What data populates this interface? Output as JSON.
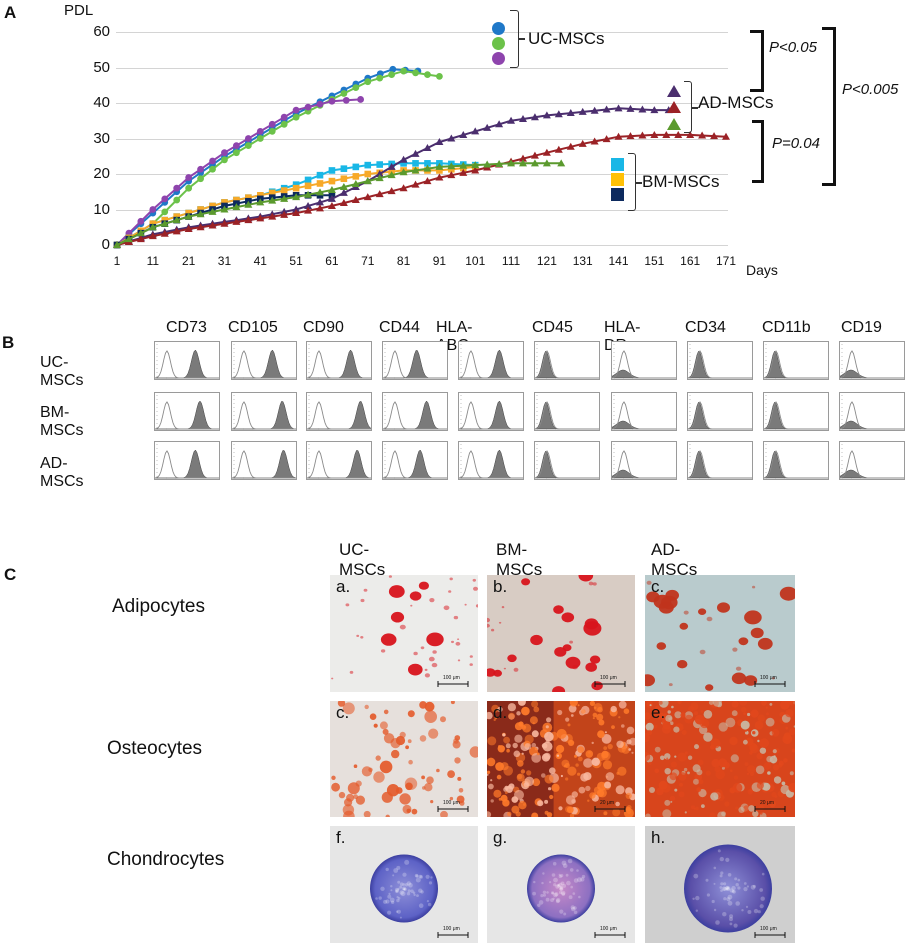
{
  "panel_a": {
    "letter": "A",
    "y_axis_label": "PDL",
    "x_axis_label": "Days",
    "y_ticks": [
      "0",
      "10",
      "20",
      "30",
      "40",
      "50",
      "60"
    ],
    "x_ticks": [
      "1",
      "11",
      "21",
      "31",
      "41",
      "51",
      "61",
      "71",
      "81",
      "91",
      "101",
      "111",
      "121",
      "131",
      "141",
      "151",
      "161",
      "171"
    ],
    "groups": [
      {
        "label": "UC-MSCs",
        "marker": "circle",
        "colors": [
          "#1f78c8",
          "#6cc24a",
          "#8e44ad"
        ]
      },
      {
        "label": "AD-MSCs",
        "marker": "triangle",
        "colors": [
          "#4b2e6e",
          "#9b2226",
          "#5b9a2e"
        ]
      },
      {
        "label": "BM-MSCs",
        "marker": "square",
        "colors": [
          "#19b7e6",
          "#f7a928",
          "#0d2a5e"
        ]
      }
    ],
    "p_values": {
      "uc_vs_ad": "P<0.05",
      "ad_vs_bm": "P=0.04",
      "uc_vs_bm": "P<0.005"
    }
  },
  "panel_b": {
    "letter": "B",
    "markers": [
      "CD73",
      "CD105",
      "CD90",
      "CD44",
      "HLA-ABC",
      "CD45",
      "HLA-DR",
      "CD34",
      "CD11b",
      "CD19"
    ],
    "rows": [
      "UC-MSCs",
      "BM-MSCs",
      "AD-MSCs"
    ],
    "positive_peak_positions": [
      [
        0.55,
        0.55,
        0.6,
        0.45,
        0.55,
        0.12,
        0.1,
        0.12,
        0.12,
        0.1
      ],
      [
        0.62,
        0.7,
        0.75,
        0.6,
        0.55,
        0.18,
        0.1,
        0.15,
        0.15,
        0.1
      ],
      [
        0.55,
        0.72,
        0.7,
        0.5,
        0.55,
        0.12,
        0.15,
        0.22,
        0.22,
        0.12
      ]
    ],
    "expression": [
      "positive",
      "positive",
      "positive",
      "positive",
      "positive",
      "negative",
      "negative",
      "negative",
      "negative",
      "negative"
    ]
  },
  "panel_c": {
    "letter": "C",
    "columns": [
      "UC-MSCs",
      "BM-MSCs",
      "AD-MSCs"
    ],
    "rows": [
      {
        "label": "Adipocytes",
        "images": [
          {
            "tag": "a.",
            "scale": "100 μm",
            "bg": "#ececea",
            "stain": "#d8141c"
          },
          {
            "tag": "b.",
            "scale": "100 μm",
            "bg": "#d8ccc4",
            "stain": "#d8141c"
          },
          {
            "tag": "c.",
            "scale": "100 μm",
            "bg": "#b9cbcd",
            "stain": "#c0341c"
          }
        ]
      },
      {
        "label": "Osteocytes",
        "images": [
          {
            "tag": "c.",
            "scale": "100 μm",
            "bg": "#e6e0dc",
            "stain": "#e45a2a"
          },
          {
            "tag": "d.",
            "scale": "20 μm",
            "bg": "#8a2a1a",
            "stain": "#f4621c"
          },
          {
            "tag": "e.",
            "scale": "20 μm",
            "bg": "#d8451c",
            "stain": "#c0301a"
          }
        ]
      },
      {
        "label": "Chondrocytes",
        "images": [
          {
            "tag": "f.",
            "scale": "100 μm",
            "bg": "#e6e6e6",
            "stain": "#5d62c6"
          },
          {
            "tag": "g.",
            "scale": "100 μm",
            "bg": "#e6e6e6",
            "stain": "#8d70c2"
          },
          {
            "tag": "h.",
            "scale": "100 μm",
            "bg": "#cfcfcf",
            "stain": "#5a4fa8"
          }
        ]
      }
    ]
  },
  "chart_data": {
    "type": "line",
    "title": "",
    "xlabel": "Days",
    "ylabel": "PDL",
    "ylim": [
      0,
      60
    ],
    "xlim": [
      1,
      171
    ],
    "grid": true,
    "legend_position": "right (grouped brackets)",
    "x_ticks": [
      1,
      11,
      21,
      31,
      41,
      51,
      61,
      71,
      81,
      91,
      101,
      111,
      121,
      131,
      141,
      151,
      161,
      171
    ],
    "series": [
      {
        "name": "UC-MSCs 1",
        "group": "UC-MSCs",
        "color": "#1f78c8",
        "marker": "circle",
        "x": [
          1,
          11,
          21,
          31,
          41,
          51,
          61,
          71,
          78,
          85
        ],
        "values": [
          0,
          9,
          18,
          25,
          31,
          37,
          42,
          47,
          49.5,
          49
        ]
      },
      {
        "name": "UC-MSCs 2",
        "group": "UC-MSCs",
        "color": "#6cc24a",
        "marker": "circle",
        "x": [
          1,
          11,
          21,
          31,
          41,
          51,
          61,
          71,
          81,
          91
        ],
        "values": [
          0,
          6,
          16,
          24,
          30,
          36,
          41,
          46,
          49,
          47.5
        ]
      },
      {
        "name": "UC-MSCs 3",
        "group": "UC-MSCs",
        "color": "#8e44ad",
        "marker": "circle",
        "x": [
          1,
          11,
          21,
          31,
          41,
          51,
          61,
          69
        ],
        "values": [
          0,
          10,
          19,
          26,
          32,
          38,
          40.5,
          41
        ]
      },
      {
        "name": "BM-MSCs 1",
        "group": "BM-MSCs",
        "color": "#19b7e6",
        "marker": "square",
        "x": [
          1,
          11,
          21,
          31,
          41,
          51,
          61,
          71,
          81,
          91,
          101
        ],
        "values": [
          0,
          6,
          9,
          12,
          14,
          17,
          21,
          22.5,
          23,
          23,
          22.5
        ]
      },
      {
        "name": "BM-MSCs 2",
        "group": "BM-MSCs",
        "color": "#f7a928",
        "marker": "square",
        "x": [
          1,
          11,
          21,
          31,
          41,
          51,
          61,
          71,
          81,
          91,
          101
        ],
        "values": [
          0,
          6,
          9,
          12,
          14,
          16,
          18,
          20,
          21,
          21,
          22
        ]
      },
      {
        "name": "BM-MSCs 3",
        "group": "BM-MSCs",
        "color": "#0d2a5e",
        "marker": "square",
        "x": [
          1,
          11,
          21,
          31,
          41,
          51,
          61
        ],
        "values": [
          0,
          5,
          8,
          11,
          13,
          14,
          14
        ]
      },
      {
        "name": "AD-MSCs 1",
        "group": "AD-MSCs",
        "color": "#4b2e6e",
        "marker": "triangle",
        "x": [
          1,
          11,
          21,
          31,
          41,
          51,
          61,
          71,
          81,
          91,
          101,
          111,
          121,
          131,
          141,
          151,
          155
        ],
        "values": [
          0,
          3,
          5,
          6.5,
          8,
          10,
          13,
          18,
          24,
          29,
          32,
          35,
          36.5,
          37.5,
          38.5,
          38,
          38
        ]
      },
      {
        "name": "AD-MSCs 2",
        "group": "AD-MSCs",
        "color": "#9b2226",
        "marker": "triangle",
        "x": [
          1,
          11,
          21,
          31,
          41,
          51,
          61,
          71,
          81,
          91,
          101,
          111,
          121,
          131,
          141,
          151,
          161,
          171
        ],
        "values": [
          0,
          2.5,
          4.5,
          6,
          7.5,
          9,
          11,
          13.5,
          16,
          19,
          21,
          23.5,
          26,
          28.5,
          30.5,
          31,
          31,
          30.5
        ]
      },
      {
        "name": "AD-MSCs 3",
        "group": "AD-MSCs",
        "color": "#5b9a2e",
        "marker": "triangle",
        "x": [
          1,
          11,
          21,
          31,
          41,
          51,
          61,
          71,
          81,
          91,
          101,
          111,
          121,
          125
        ],
        "values": [
          0,
          5,
          8,
          10,
          12,
          13.5,
          15.5,
          18,
          20.5,
          22,
          22.5,
          23,
          23,
          23
        ]
      }
    ],
    "annotations": [
      "P<0.05",
      "P=0.04",
      "P<0.005"
    ]
  }
}
